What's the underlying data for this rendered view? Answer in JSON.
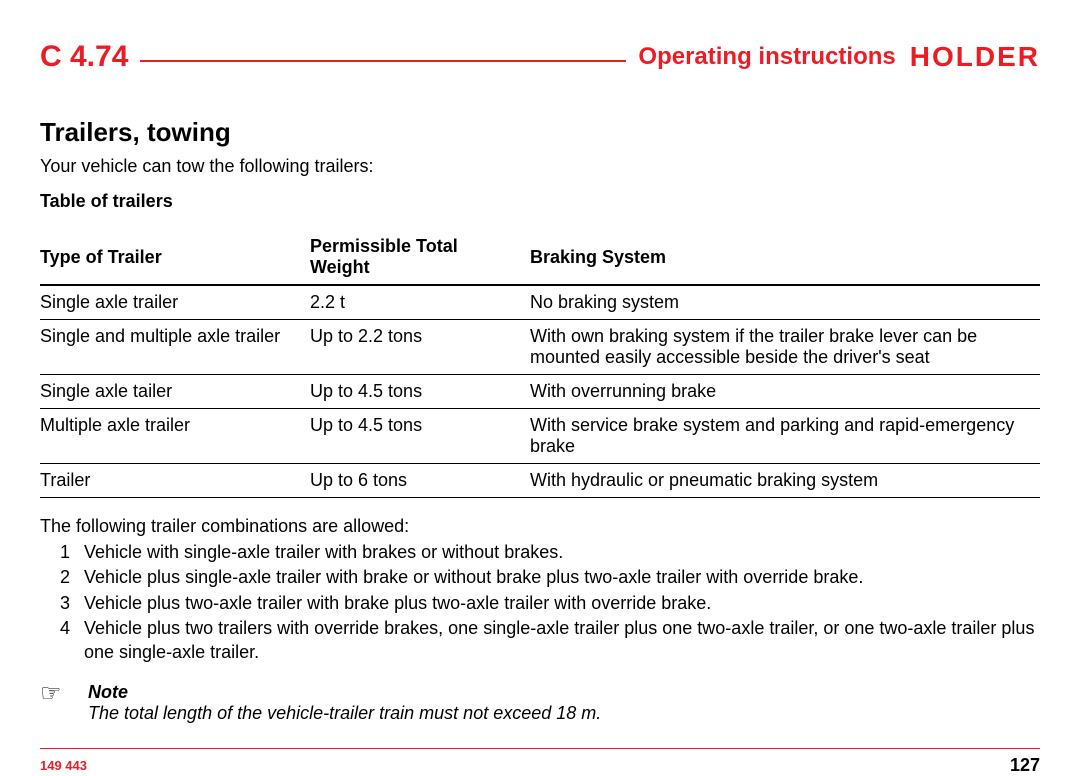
{
  "header": {
    "model": "C 4.74",
    "subtitle": "Operating instructions",
    "brand": "HOLDER",
    "accent_color": "#ec1c24"
  },
  "section": {
    "title": "Trailers, towing",
    "intro": "Your vehicle can tow the following trailers:",
    "table_caption": "Table of trailers"
  },
  "table": {
    "columns": [
      "Type of Trailer",
      "Permissible Total Weight",
      "Braking System"
    ],
    "col_widths": [
      "27%",
      "22%",
      "51%"
    ],
    "rows": [
      [
        "Single axle trailer",
        "2.2 t",
        "No braking system"
      ],
      [
        "Single and multiple axle trailer",
        "Up to 2.2 tons",
        "With own braking system if the trailer brake lever can be mounted easily accessible beside the driver's seat"
      ],
      [
        "Single axle tailer",
        "Up to 4.5 tons",
        "With overrunning brake"
      ],
      [
        "Multiple axle trailer",
        "Up to 4.5 tons",
        "With service brake system and parking and rapid-emergency brake"
      ],
      [
        "Trailer",
        "Up to 6 tons",
        "With hydraulic or pneumatic braking system"
      ]
    ]
  },
  "combinations": {
    "intro": "The following trailer combinations are allowed:",
    "items": [
      "Vehicle with single-axle trailer with brakes or without brakes.",
      "Vehicle plus single-axle trailer with brake or without brake plus two-axle trailer with override brake.",
      "Vehicle plus two-axle trailer with brake plus two-axle trailer with override brake.",
      "Vehicle plus two trailers with override brakes, one single-axle trailer plus one two-axle trailer, or one two-axle trailer plus one single-axle trailer."
    ]
  },
  "note": {
    "icon": "☞",
    "label": "Note",
    "text": "The total length of the vehicle-trailer train must not exceed 18 m."
  },
  "footer": {
    "doc_number": "149 443",
    "page": "127"
  }
}
